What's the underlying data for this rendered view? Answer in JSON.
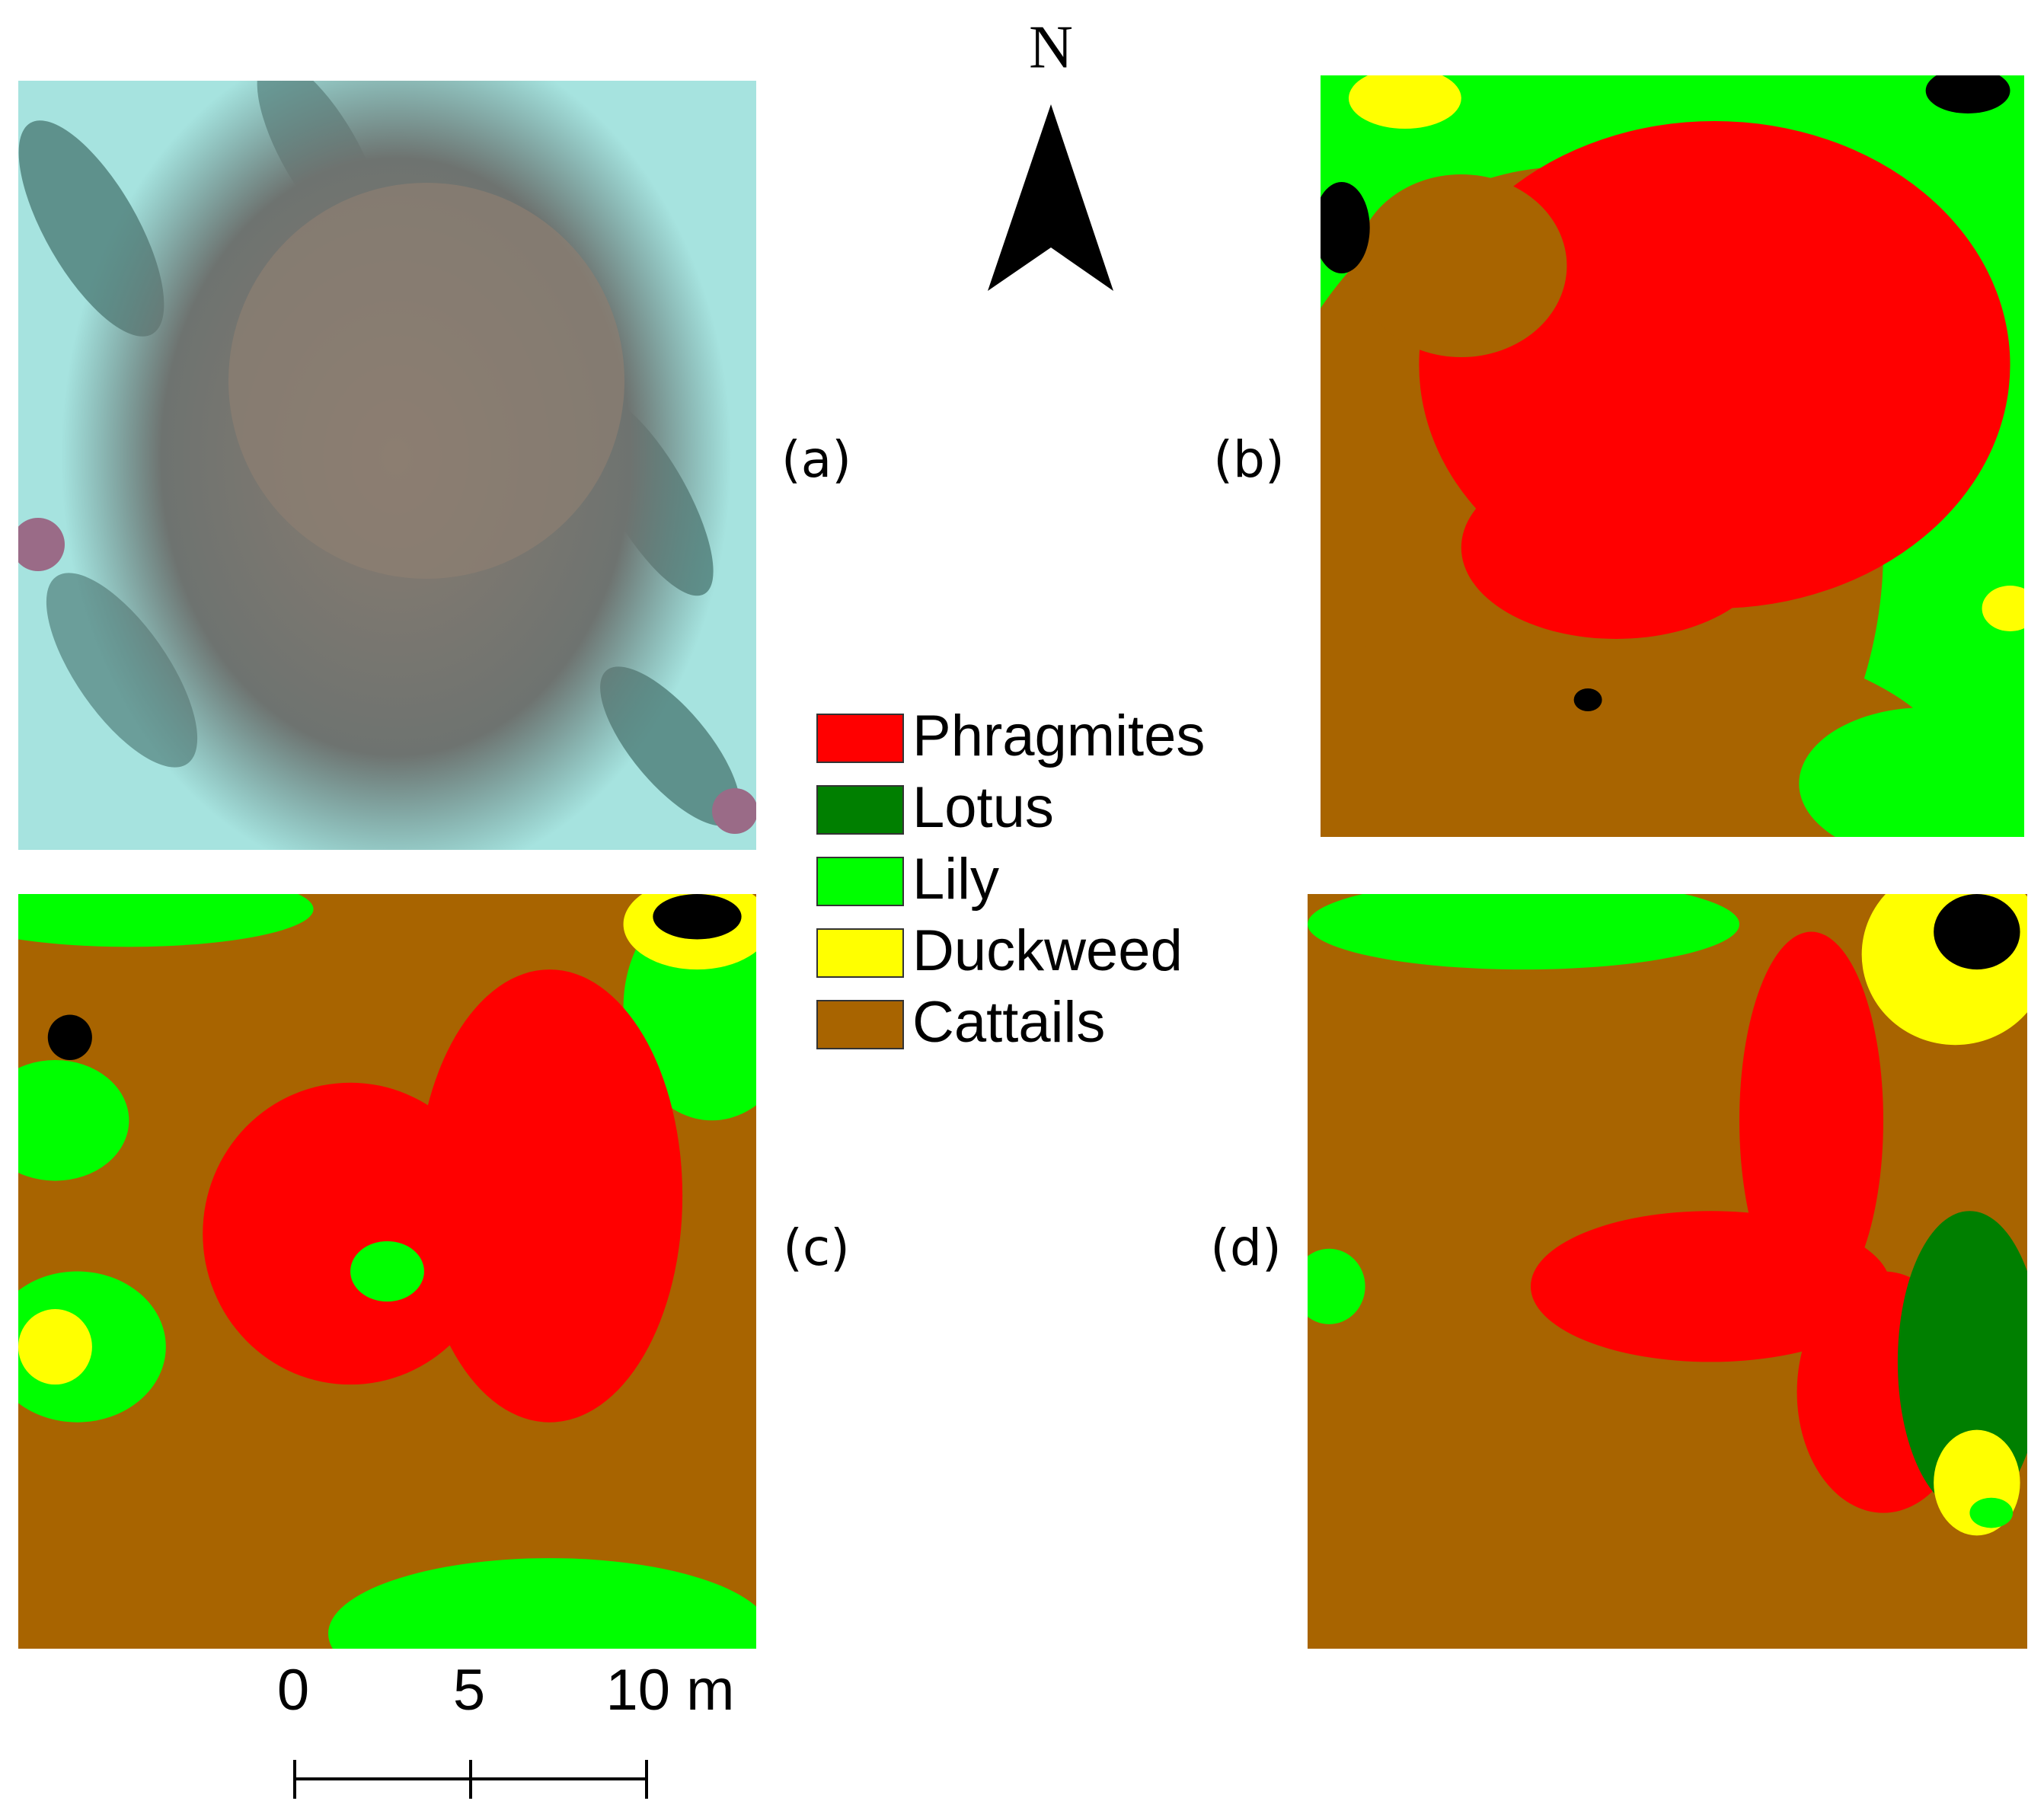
{
  "north": "N",
  "panels": [
    "(a)",
    "(b)",
    "(c)",
    "(d)"
  ],
  "legend": [
    {
      "label": "Phragmites",
      "color": "#ff0000"
    },
    {
      "label": "Lotus",
      "color": "#007f00"
    },
    {
      "label": "Lily",
      "color": "#00ff00"
    },
    {
      "label": "Duckweed",
      "color": "#ffff00"
    },
    {
      "label": "Cattails",
      "color": "#a86400"
    }
  ],
  "scale_bar": [
    "0",
    "5",
    "10 m"
  ]
}
